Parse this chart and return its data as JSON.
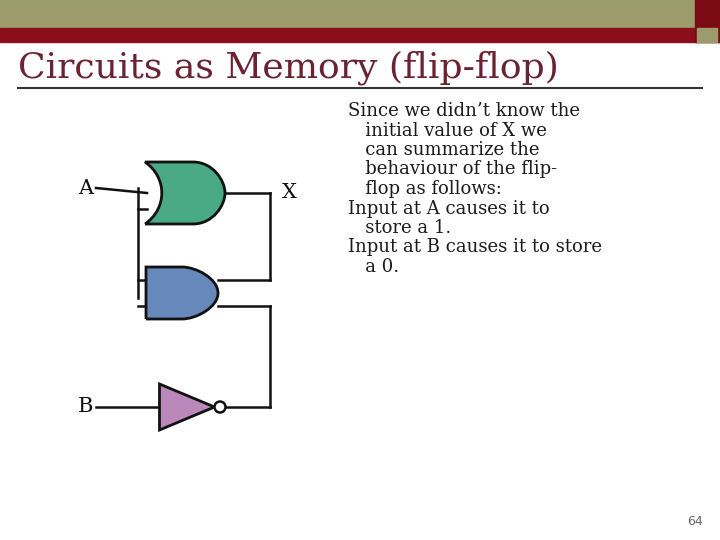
{
  "title": "Circuits as Memory (flip-flop)",
  "title_color": "#6B2232",
  "title_fontsize": 26,
  "bg_color": "#FFFFFF",
  "header_bar1_color": "#9B9B6B",
  "header_bar2_color": "#8B0F1A",
  "header_sq_color": "#7B1020",
  "text_lines": [
    [
      "Since we didn’t know the",
      0
    ],
    [
      "   initial value of X we",
      1
    ],
    [
      "   can summarize the",
      1
    ],
    [
      "   behaviour of the flip-",
      1
    ],
    [
      "   flop as follows:",
      1
    ],
    [
      "Input at A causes it to",
      0
    ],
    [
      "   store a 1.",
      1
    ],
    [
      "Input at B causes it to store",
      0
    ],
    [
      "   a 0.",
      1
    ]
  ],
  "text_color": "#1a1a1a",
  "text_fontsize": 13.0,
  "label_A": "A",
  "label_B": "B",
  "label_X": "X",
  "page_number": "64",
  "or_gate_color": "#4aaa88",
  "and_gate_color": "#6688bb",
  "not_gate_color": "#bb88bb",
  "gate_edge_color": "#111111"
}
